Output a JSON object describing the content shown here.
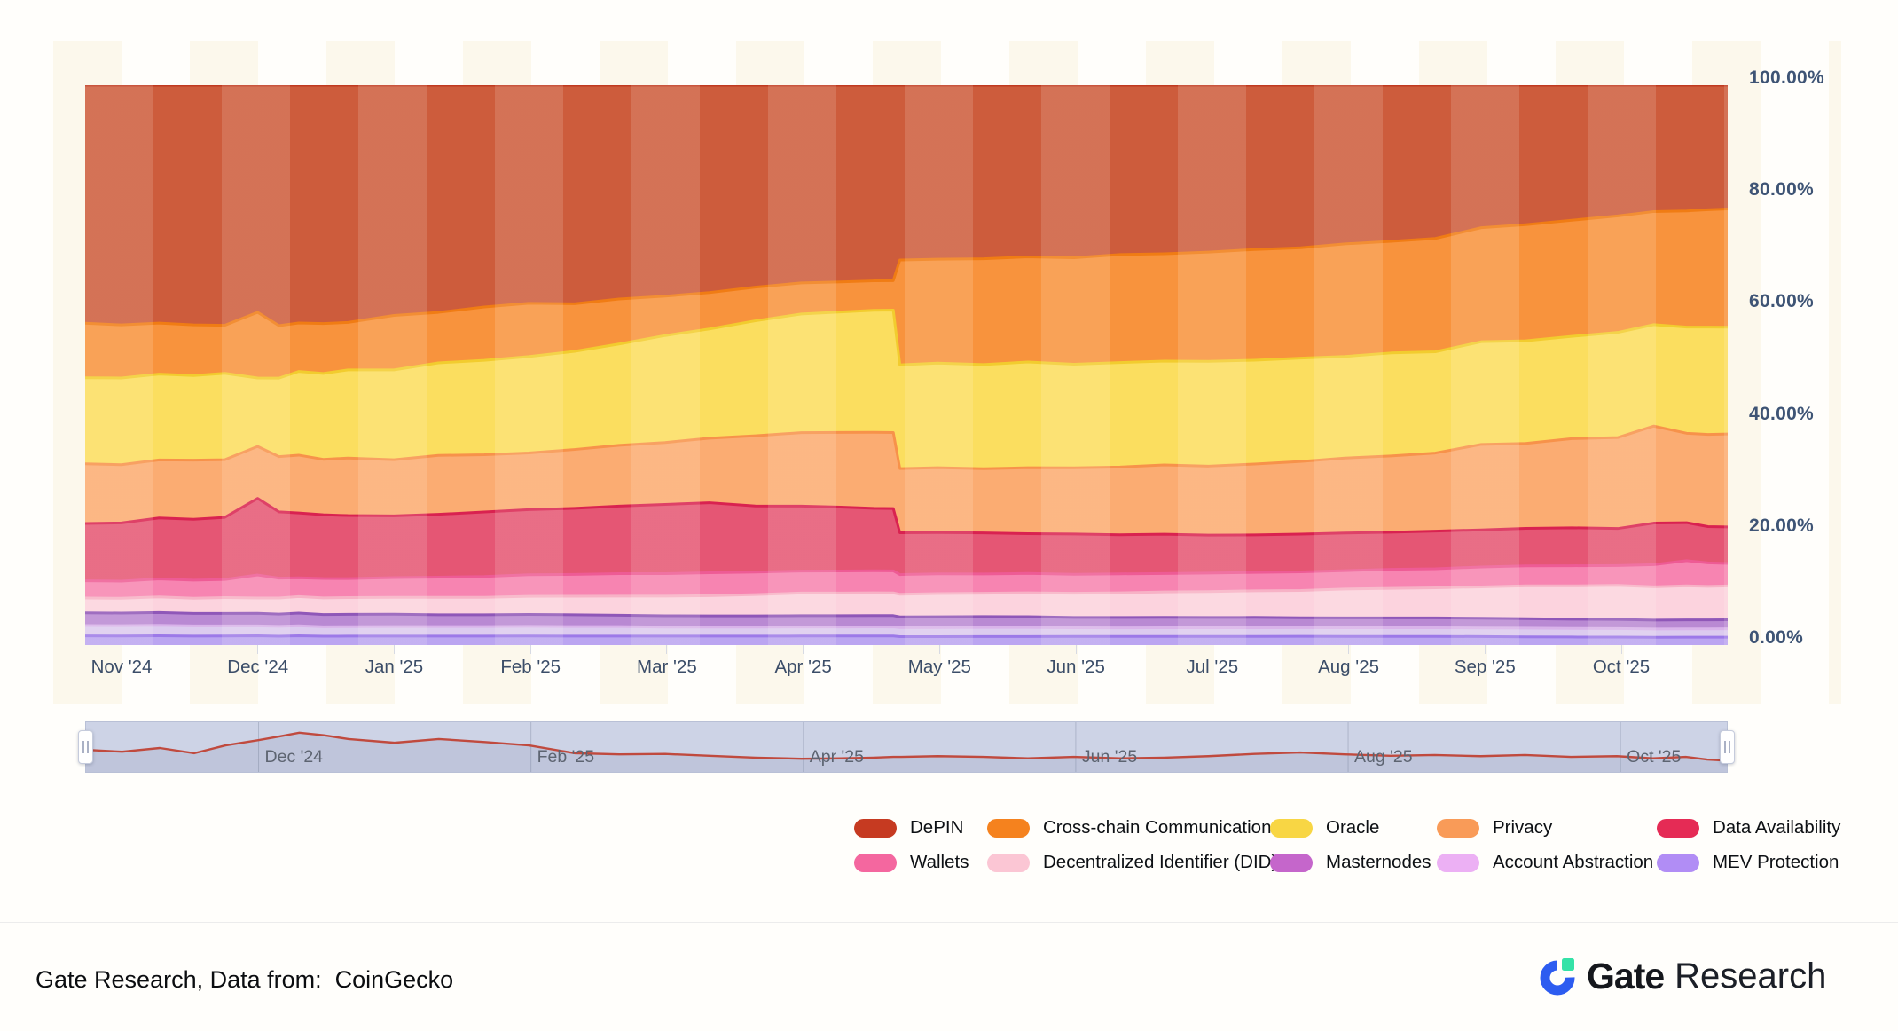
{
  "axes": {
    "y_tick_labels": [
      "100.00%",
      "80.00%",
      "60.00%",
      "40.00%",
      "20.00%",
      "0.00%"
    ],
    "y_tick_values": [
      100,
      80,
      60,
      40,
      20,
      0
    ],
    "x_tick_labels": [
      "Nov '24",
      "Dec '24",
      "Jan '25",
      "Feb '25",
      "Mar '25",
      "Apr '25",
      "May '25",
      "Jun '25",
      "Jul '25",
      "Aug '25",
      "Sep '25",
      "Oct '25"
    ]
  },
  "navigator": {
    "tick_labels": [
      "Dec '24",
      "Feb '25",
      "Apr '25",
      "Jun '25",
      "Aug '25",
      "Oct '25"
    ],
    "tick_month_indices": [
      1,
      3,
      5,
      7,
      9,
      11
    ],
    "line_color": "#c04a3e",
    "values": [
      45,
      40,
      50,
      36,
      57,
      71,
      81,
      91,
      84,
      74,
      64,
      74,
      66,
      57,
      36,
      33,
      34,
      29,
      24,
      21,
      22,
      24,
      26,
      26,
      28,
      26,
      22,
      26,
      22,
      24,
      28,
      34,
      38,
      33,
      29,
      31,
      28,
      31,
      26,
      28,
      22,
      26,
      19,
      16
    ]
  },
  "chart_data": {
    "type": "area",
    "stacked": true,
    "normalized_percent": true,
    "title": "",
    "xlabel": "",
    "ylabel": "",
    "ylim": [
      0,
      100
    ],
    "x_range": [
      "Nov '24",
      "Oct '25"
    ],
    "legend_position": "bottom",
    "grid": false,
    "x": [
      0.0,
      0.022,
      0.045,
      0.066,
      0.085,
      0.105,
      0.118,
      0.13,
      0.145,
      0.16,
      0.188,
      0.215,
      0.243,
      0.27,
      0.298,
      0.325,
      0.353,
      0.38,
      0.408,
      0.436,
      0.46,
      0.48,
      0.492,
      0.496,
      0.519,
      0.547,
      0.574,
      0.602,
      0.63,
      0.657,
      0.684,
      0.712,
      0.74,
      0.767,
      0.795,
      0.822,
      0.85,
      0.877,
      0.905,
      0.933,
      0.955,
      0.975,
      0.988,
      1.0
    ],
    "series": [
      {
        "name": "DePIN",
        "color": "#c63a21",
        "line": "#c03a20",
        "fill": "#cd5c3c",
        "values": [
          41.5,
          42.0,
          41.0,
          42.5,
          42.5,
          41.5,
          43.5,
          43.2,
          43.0,
          42.5,
          41.0,
          40.5,
          39.5,
          38.5,
          39.0,
          38.0,
          37.5,
          37.0,
          36.0,
          35.0,
          34.8,
          34.5,
          34.5,
          31.0,
          30.8,
          30.5,
          30.2,
          30.0,
          29.5,
          29.2,
          29.0,
          28.5,
          28.0,
          27.5,
          27.0,
          26.5,
          25.0,
          23.8,
          23.5,
          23.0,
          22.8,
          22.5,
          22.3,
          22.0
        ]
      },
      {
        "name": "Cross-chain Communication",
        "color": "#f5821e",
        "line": "#f07c14",
        "fill": "#f8933d",
        "values": [
          9.5,
          9.3,
          8.8,
          9.0,
          8.5,
          12.0,
          9.5,
          8.8,
          9.0,
          8.5,
          9.7,
          9.0,
          9.5,
          9.4,
          8.5,
          8.0,
          7.0,
          6.5,
          6.0,
          5.5,
          5.3,
          5.2,
          5.2,
          18.6,
          18.4,
          18.6,
          18.5,
          18.5,
          18.8,
          18.6,
          19.0,
          19.2,
          19.0,
          19.5,
          19.3,
          19.6,
          20.0,
          19.8,
          20.2,
          20.5,
          20.4,
          20.8,
          21.0,
          21.0
        ]
      },
      {
        "name": "Oracle",
        "color": "#f8d644",
        "line": "#f2cc2e",
        "fill": "#fbde5f",
        "values": [
          15.0,
          15.2,
          14.8,
          15.0,
          15.3,
          12.5,
          14.2,
          15.2,
          15.5,
          15.8,
          16.0,
          16.5,
          16.8,
          17.0,
          17.5,
          18.0,
          19.0,
          19.5,
          20.5,
          21.0,
          21.3,
          21.5,
          21.6,
          18.4,
          18.5,
          18.3,
          18.6,
          18.0,
          18.2,
          18.0,
          18.2,
          18.0,
          17.8,
          17.6,
          17.8,
          17.5,
          18.0,
          17.5,
          17.8,
          18.5,
          18.3,
          19.0,
          19.2,
          19.0
        ]
      },
      {
        "name": "Privacy",
        "color": "#f99b58",
        "line": "#f7924a",
        "fill": "#fbac72",
        "values": [
          10.4,
          10.2,
          10.0,
          10.5,
          10.2,
          9.5,
          10.0,
          10.5,
          10.0,
          10.3,
          10.0,
          10.5,
          10.2,
          10.0,
          10.5,
          10.8,
          11.0,
          11.5,
          12.5,
          13.0,
          13.2,
          13.4,
          13.4,
          11.4,
          11.5,
          11.3,
          11.6,
          11.5,
          11.8,
          12.0,
          12.0,
          12.3,
          12.5,
          13.0,
          13.2,
          13.5,
          15.0,
          14.5,
          15.5,
          16.0,
          17.5,
          16.0,
          16.5,
          16.5
        ]
      },
      {
        "name": "Data Availability",
        "color": "#e52b55",
        "line": "#d92250",
        "fill": "#e55674",
        "values": [
          10.0,
          10.2,
          10.5,
          10.8,
          11.0,
          14.0,
          12.0,
          11.8,
          11.5,
          11.3,
          11.0,
          11.2,
          11.5,
          11.5,
          11.8,
          12.0,
          12.3,
          12.5,
          11.8,
          11.5,
          11.3,
          11.0,
          11.0,
          7.4,
          7.3,
          7.2,
          7.0,
          7.0,
          6.8,
          6.8,
          6.6,
          6.5,
          6.5,
          6.5,
          6.4,
          6.5,
          6.5,
          6.4,
          6.6,
          6.5,
          7.5,
          6.8,
          6.5,
          6.5
        ]
      },
      {
        "name": "Wallets",
        "color": "#f4679f",
        "line": "#ee5b95",
        "fill": "#f784b1",
        "values": [
          3.0,
          3.0,
          3.1,
          3.2,
          3.2,
          4.2,
          3.6,
          3.4,
          3.5,
          3.4,
          3.5,
          3.6,
          3.7,
          3.8,
          3.9,
          4.0,
          4.0,
          4.1,
          4.0,
          3.9,
          3.9,
          3.9,
          3.9,
          3.5,
          3.5,
          3.4,
          3.4,
          3.3,
          3.3,
          3.2,
          3.2,
          3.2,
          3.2,
          3.2,
          3.3,
          3.3,
          3.5,
          3.4,
          3.5,
          3.5,
          4.0,
          4.5,
          4.2,
          4.0
        ]
      },
      {
        "name": "Decentralized Identifier (DID)",
        "color": "#fbc6d4",
        "line": "#f7b2c6",
        "fill": "#fcd3de",
        "values": [
          2.6,
          2.6,
          2.7,
          2.7,
          2.8,
          2.8,
          2.9,
          3.0,
          3.0,
          3.0,
          3.0,
          3.1,
          3.1,
          3.2,
          3.3,
          3.4,
          3.5,
          3.6,
          3.8,
          4.0,
          4.0,
          4.0,
          4.0,
          4.0,
          4.1,
          4.1,
          4.2,
          4.2,
          4.3,
          4.4,
          4.5,
          4.6,
          4.7,
          5.0,
          5.1,
          5.2,
          5.5,
          5.6,
          5.8,
          6.0,
          6.0,
          6.1,
          6.0,
          6.0
        ]
      },
      {
        "name": "Masternodes",
        "color": "#c566cb",
        "line": "#8f57b8",
        "fill": "#b989d3",
        "values": [
          2.2,
          2.2,
          2.2,
          2.2,
          2.2,
          2.3,
          2.2,
          2.3,
          2.2,
          2.2,
          2.2,
          2.1,
          2.1,
          2.1,
          2.1,
          2.0,
          2.0,
          2.0,
          2.0,
          2.0,
          2.0,
          2.0,
          2.0,
          1.9,
          1.9,
          1.9,
          1.9,
          1.8,
          1.8,
          1.8,
          1.8,
          1.8,
          1.7,
          1.7,
          1.7,
          1.7,
          1.7,
          1.6,
          1.6,
          1.6,
          1.6,
          1.6,
          1.6,
          1.6
        ]
      },
      {
        "name": "Account Abstraction",
        "color": "#ecb0f4",
        "line": "#d9b3ea",
        "fill": "#dccbef",
        "values": [
          1.8,
          1.8,
          1.8,
          1.8,
          1.8,
          1.8,
          1.8,
          1.8,
          1.7,
          1.7,
          1.7,
          1.7,
          1.7,
          1.7,
          1.7,
          1.7,
          1.6,
          1.6,
          1.6,
          1.6,
          1.6,
          1.6,
          1.6,
          1.6,
          1.6,
          1.6,
          1.6,
          1.5,
          1.5,
          1.5,
          1.5,
          1.5,
          1.5,
          1.5,
          1.5,
          1.5,
          1.5,
          1.5,
          1.5,
          1.5,
          1.5,
          1.5,
          1.5,
          1.5
        ]
      },
      {
        "name": "MEV Protection",
        "color": "#b18df5",
        "line": "#9c79e8",
        "fill": "#bba5f1",
        "values": [
          1.6,
          1.6,
          1.6,
          1.6,
          1.6,
          1.7,
          1.6,
          1.7,
          1.6,
          1.6,
          1.6,
          1.6,
          1.6,
          1.6,
          1.6,
          1.6,
          1.6,
          1.6,
          1.6,
          1.6,
          1.6,
          1.6,
          1.6,
          1.5,
          1.5,
          1.5,
          1.5,
          1.5,
          1.5,
          1.5,
          1.5,
          1.5,
          1.5,
          1.5,
          1.5,
          1.5,
          1.5,
          1.4,
          1.4,
          1.4,
          1.4,
          1.4,
          1.4,
          1.4
        ]
      }
    ]
  },
  "legend": {
    "row_assignment": [
      [
        0,
        1,
        2,
        3,
        4
      ],
      [
        5,
        6,
        7,
        8,
        9
      ]
    ],
    "column_lefts": [
      963,
      1113,
      1432,
      1620,
      1868
    ],
    "row_tops": [
      921,
      960
    ]
  },
  "footer": {
    "source": "Gate Research, Data from:  CoinGecko",
    "brand_bold": "Gate",
    "brand_light": "Research"
  }
}
